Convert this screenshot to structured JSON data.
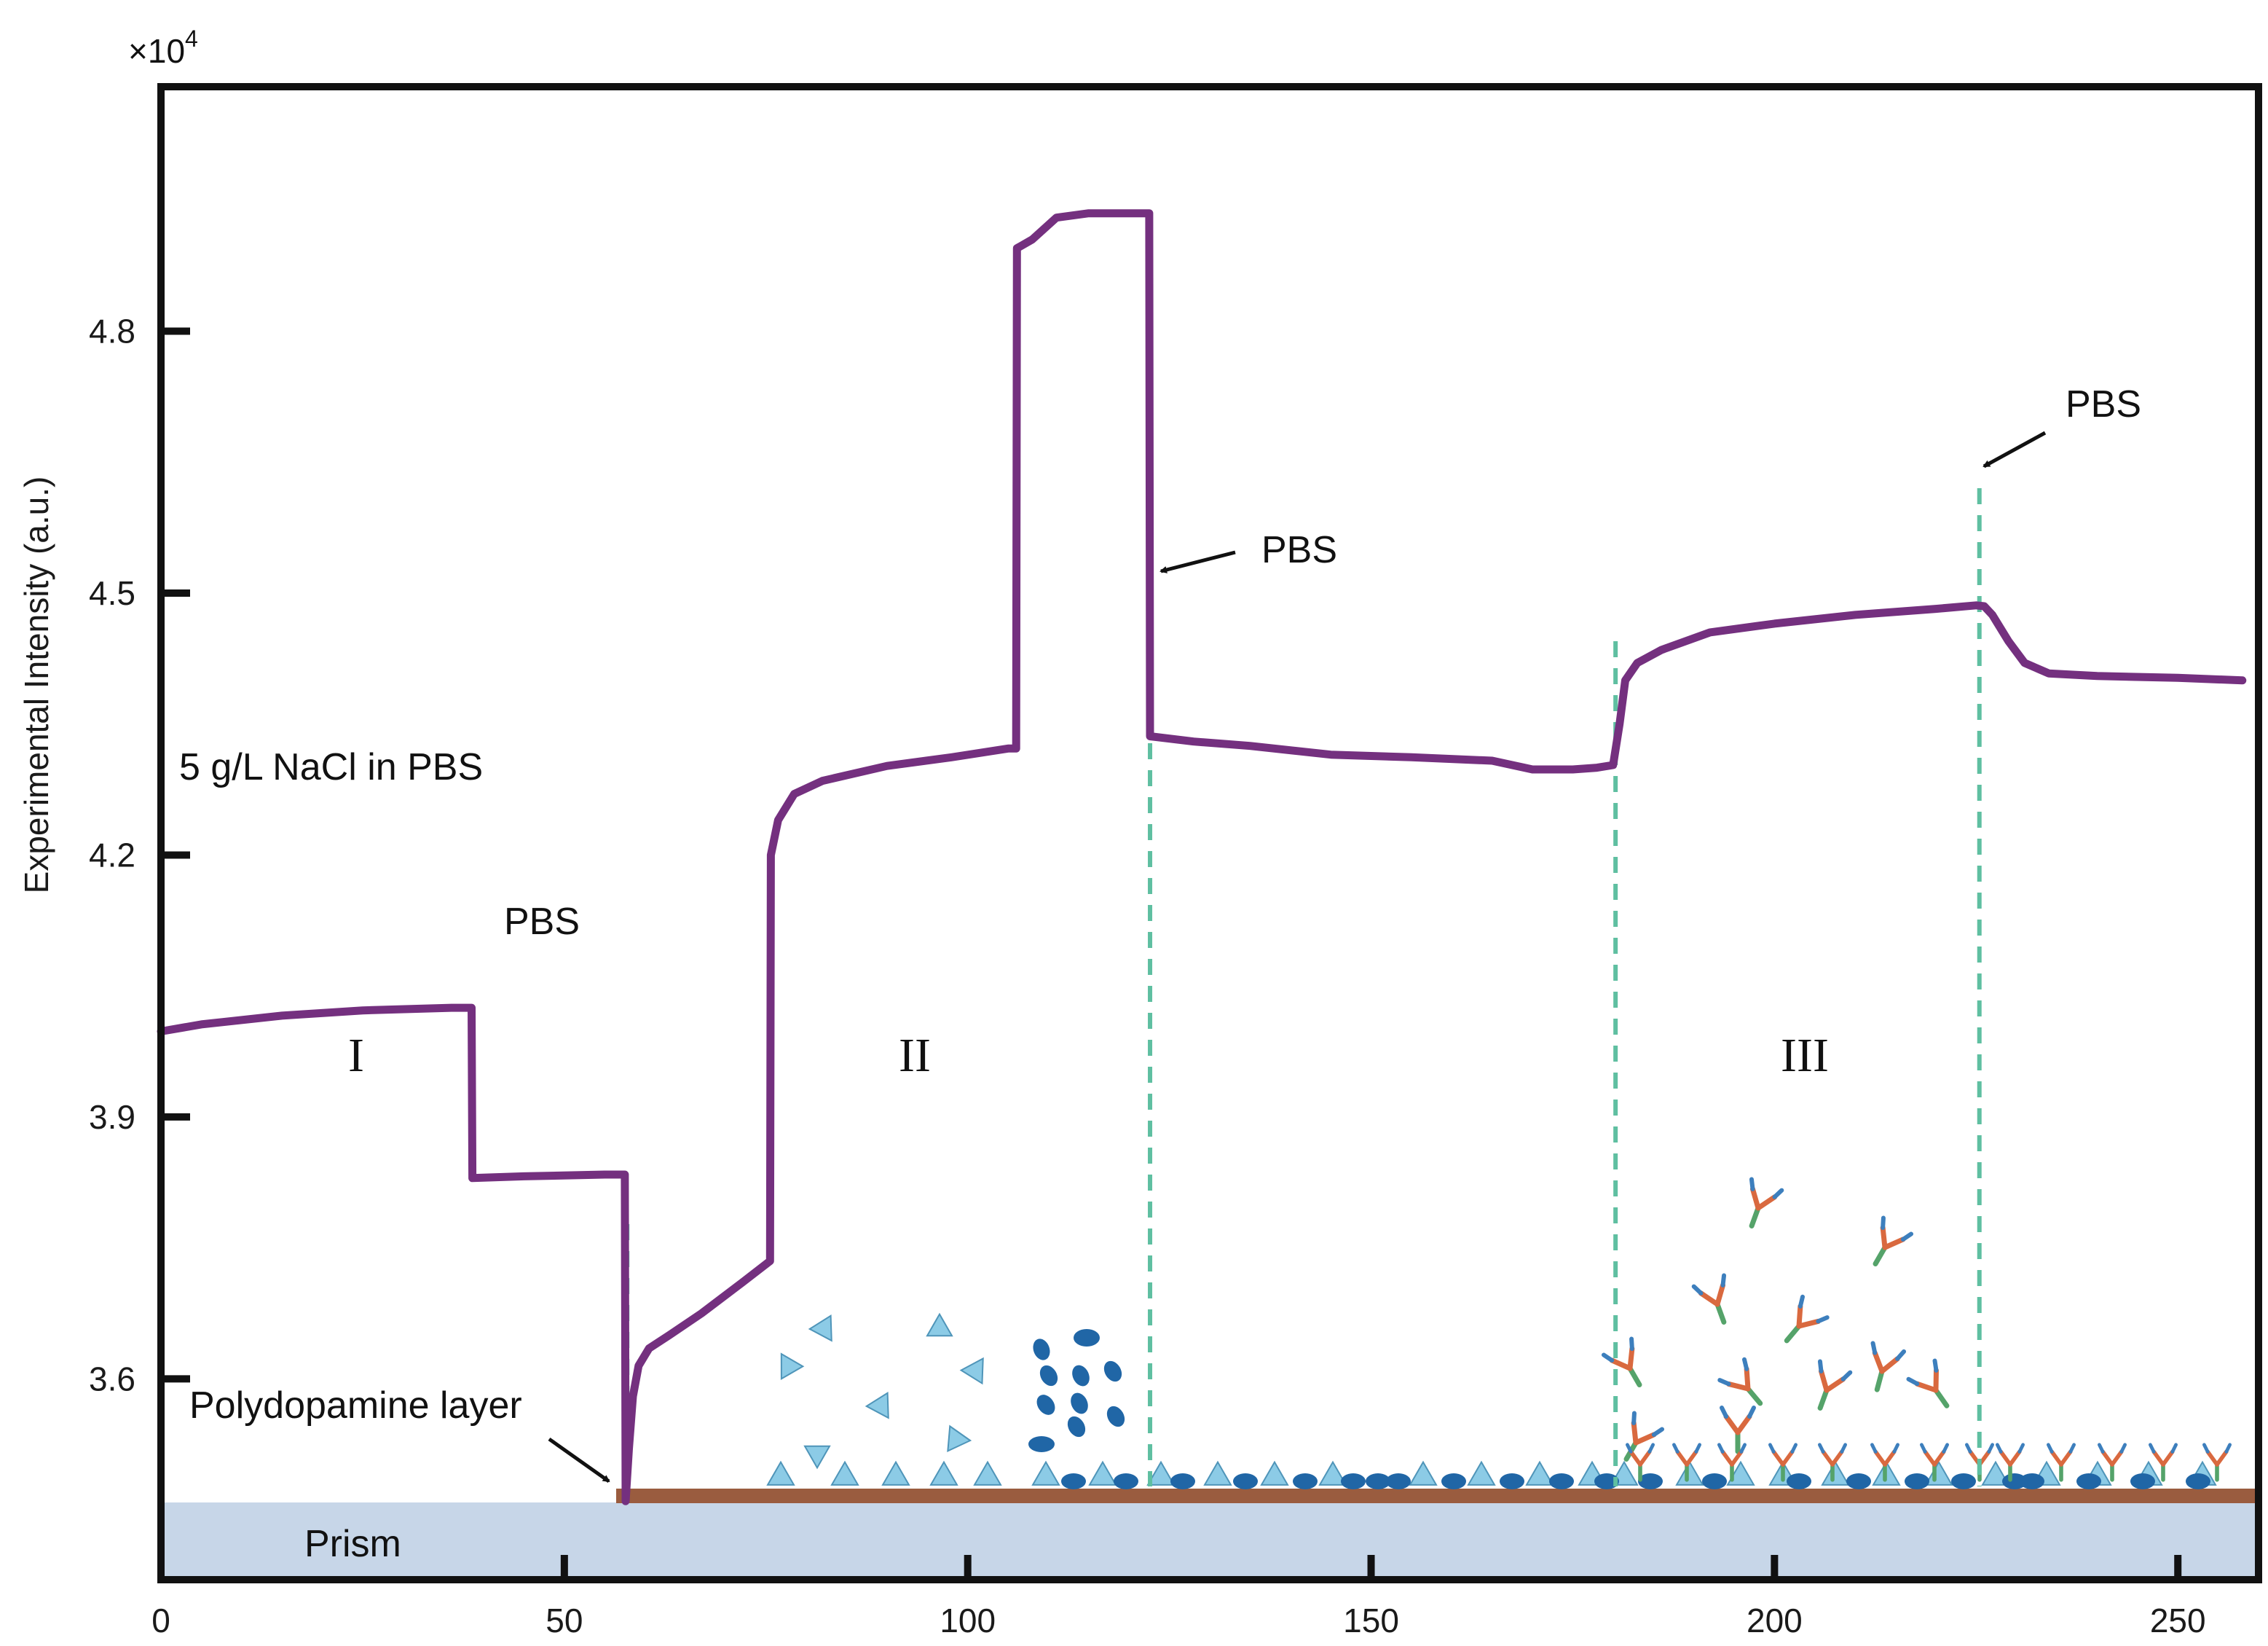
{
  "chart_data": {
    "type": "line",
    "title": "",
    "xlabel": "",
    "ylabel": "Experimental Intensity (a.u.)",
    "y_multiplier": "×10",
    "y_multiplier_exponent": "4",
    "xlim": [
      0,
      260
    ],
    "ylim": [
      3.37,
      5.08
    ],
    "xticks": [
      0,
      50,
      100,
      150,
      200,
      250
    ],
    "xtick_labels": [
      "0",
      "50",
      "100",
      "150",
      "200",
      "250"
    ],
    "yticks": [
      3.6,
      3.9,
      4.2,
      4.5,
      4.8
    ],
    "ytick_labels": [
      "3.6",
      "3.9",
      "4.2",
      "4.5",
      "4.8"
    ],
    "grid": false,
    "series": [
      {
        "color": "#74307f",
        "x": [
          0,
          5,
          15,
          25,
          36,
          38.5,
          38.6,
          45,
          55,
          57.5,
          57.6,
          58.0,
          58.5,
          59.2,
          60.5,
          63,
          67,
          72,
          75.5,
          75.6,
          76.5,
          78.5,
          82,
          90,
          98,
          105,
          106,
          106.1,
          108,
          111,
          115,
          119,
          122.5,
          122.6,
          128,
          135,
          145,
          155,
          165,
          170,
          175,
          178,
          180,
          180.8,
          181.5,
          183,
          186,
          192,
          200,
          210,
          220,
          225,
          226,
          227,
          229,
          231,
          234,
          240,
          250,
          258
        ],
        "y": [
          3.998,
          4.006,
          4.016,
          4.022,
          4.025,
          4.025,
          3.83,
          3.832,
          3.834,
          3.834,
          3.46,
          3.52,
          3.58,
          3.615,
          3.635,
          3.65,
          3.675,
          3.71,
          3.735,
          4.2,
          4.24,
          4.27,
          4.285,
          4.302,
          4.312,
          4.322,
          4.322,
          4.895,
          4.905,
          4.93,
          4.935,
          4.935,
          4.935,
          4.336,
          4.33,
          4.325,
          4.315,
          4.312,
          4.308,
          4.298,
          4.298,
          4.3,
          4.303,
          4.35,
          4.4,
          4.42,
          4.435,
          4.455,
          4.465,
          4.475,
          4.482,
          4.486,
          4.485,
          4.475,
          4.445,
          4.42,
          4.408,
          4.405,
          4.403,
          4.4
        ]
      }
    ],
    "annotations": [
      {
        "text": "5 g/L NaCl in PBS",
        "x": 1.5,
        "y": 4.085
      },
      {
        "text": "PBS",
        "x": 42,
        "y": 3.87
      },
      {
        "text": "PBS",
        "x": 138,
        "y": 4.365
      },
      {
        "text": "PBS",
        "x": 236,
        "y": 4.565
      },
      {
        "text": "Polydopamine layer",
        "x": 3.5,
        "y": null
      },
      {
        "text": "Prism",
        "x": 17,
        "y": null
      }
    ],
    "regions": [
      {
        "label": "I",
        "x": 24
      },
      {
        "label": "II",
        "x": 94
      },
      {
        "label": "III",
        "x": 203
      }
    ],
    "divider_x": [
      57.8,
      122.6,
      180.3,
      225.4
    ]
  },
  "colors": {
    "line": "#74307f",
    "divider": "#5fbfa1",
    "substrate": "#9a5c3f",
    "prism": "#c7d6e8",
    "triangle_fill": "#8ccbe6",
    "triangle_edge": "#4f95b9",
    "ellipse": "#2066a6",
    "antibody_arm": "#d9693f",
    "antibody_stem": "#55a36a",
    "antibody_tip": "#3d7fbd"
  },
  "icons": [
    "arrow-pointer",
    "triangle-molecule",
    "ellipse-molecule",
    "antibody"
  ]
}
